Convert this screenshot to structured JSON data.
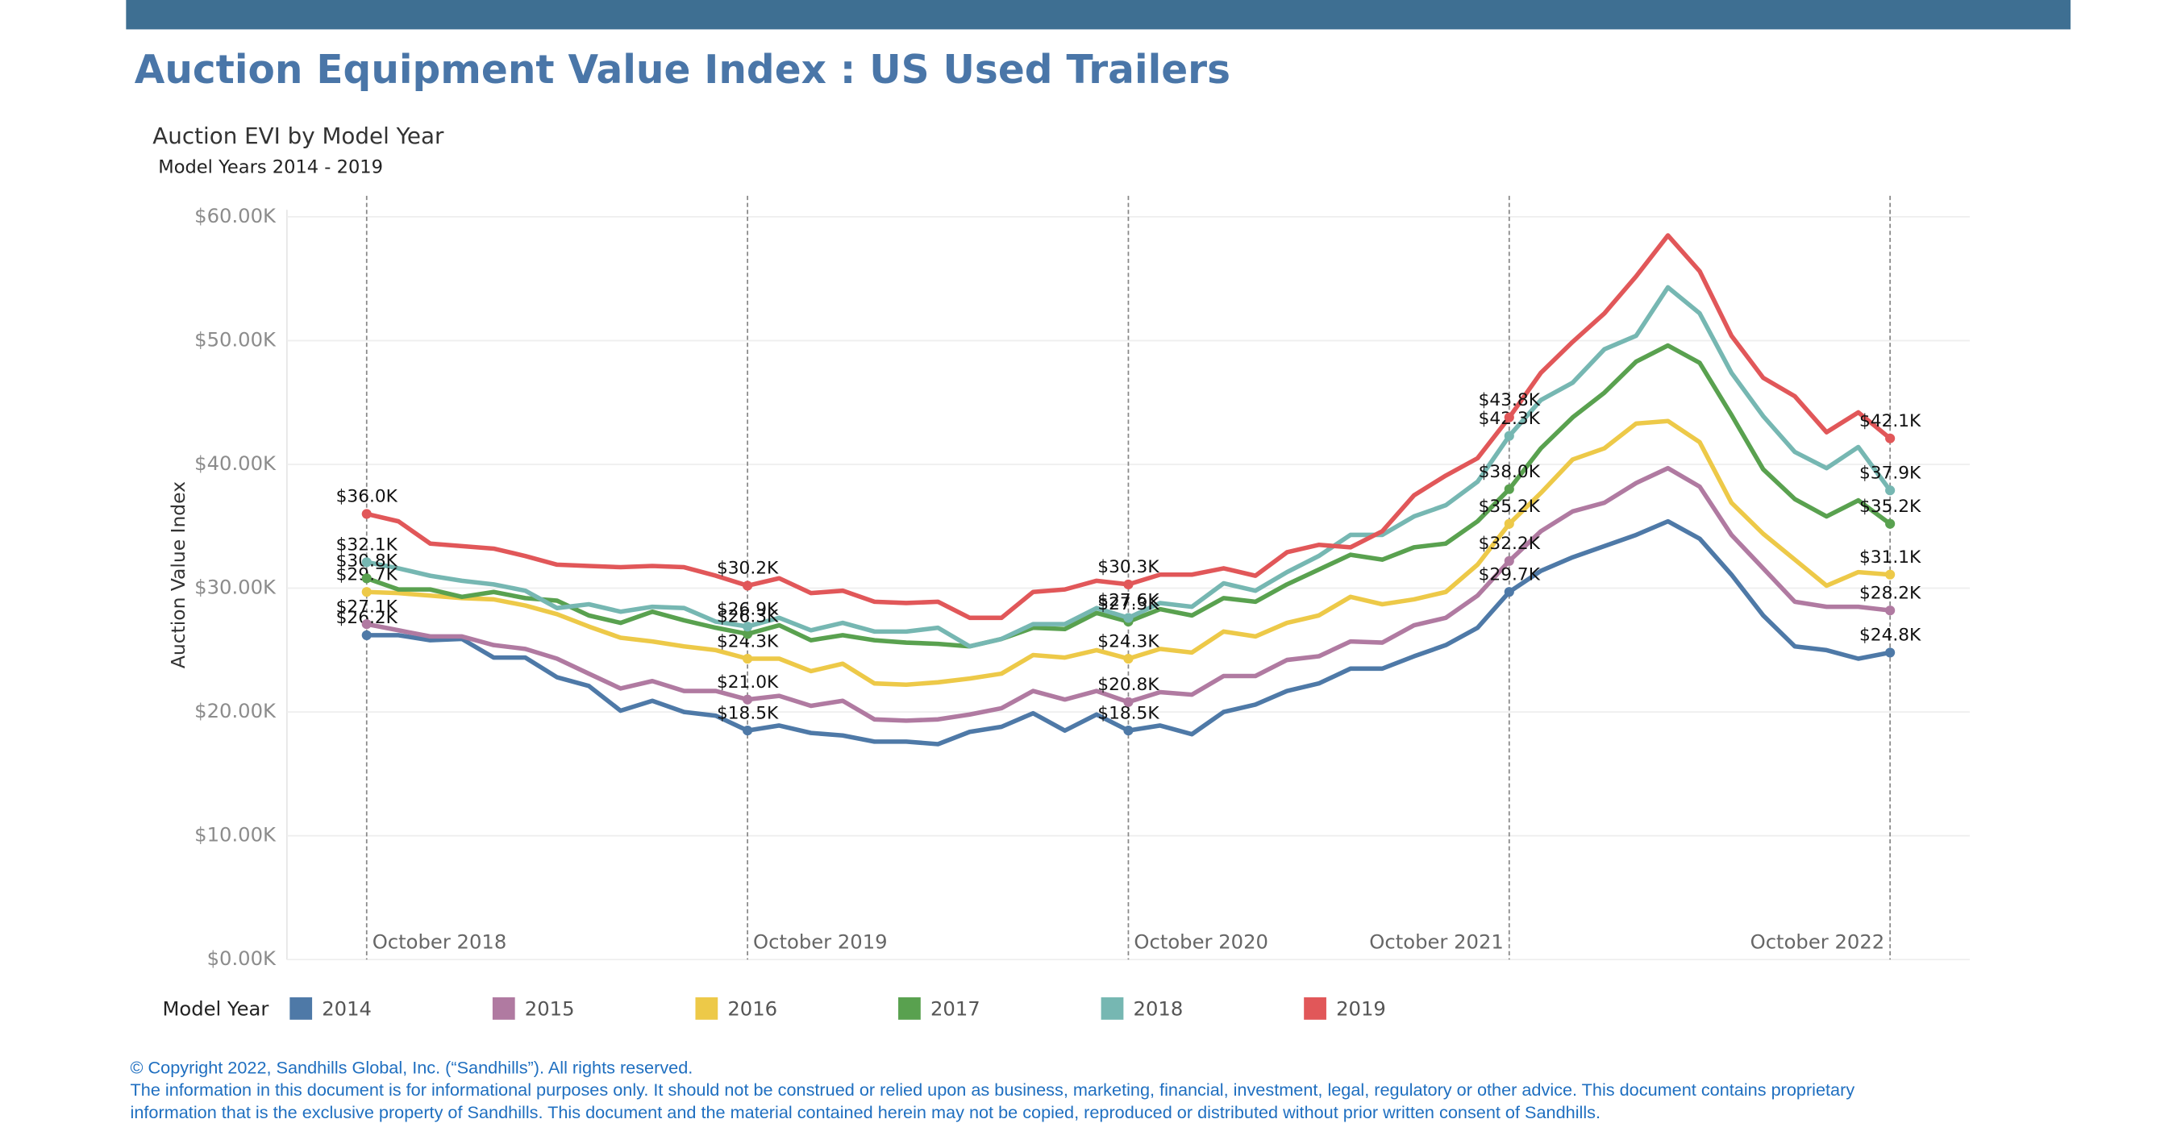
{
  "chart_data": {
    "type": "line",
    "title": "Auction Equipment Value Index : US Used Trailers",
    "subtitle": "Auction EVI by Model Year",
    "caption": "Model Years 2014 - 2019",
    "y_label": "Auction Value Index",
    "legend_title": "Model Year",
    "grid": true,
    "categories": [
      "October 2018",
      null,
      null,
      null,
      null,
      null,
      null,
      null,
      null,
      null,
      null,
      null,
      "October 2019",
      null,
      null,
      null,
      null,
      null,
      null,
      null,
      null,
      null,
      null,
      null,
      "October 2020",
      null,
      null,
      null,
      null,
      null,
      null,
      null,
      null,
      null,
      null,
      null,
      "October 2021",
      null,
      null,
      null,
      null,
      null,
      null,
      null,
      null,
      null,
      null,
      null,
      "October 2022"
    ],
    "ylim": [
      0,
      60
    ],
    "yticks": [
      {
        "value": 0,
        "label": "$0.00K"
      },
      {
        "value": 10,
        "label": "$10.00K"
      },
      {
        "value": 20,
        "label": "$20.00K"
      },
      {
        "value": 30,
        "label": "$30.00K"
      },
      {
        "value": 40,
        "label": "$40.00K"
      },
      {
        "value": 50,
        "label": "$50.00K"
      },
      {
        "value": 60,
        "label": "$60.00K"
      }
    ],
    "series": [
      {
        "name": "2014",
        "color": "#4e79a7",
        "values": [
          26.2,
          26.2,
          25.8,
          25.9,
          24.4,
          24.4,
          22.8,
          22.1,
          20.1,
          20.9,
          20.0,
          19.7,
          18.5,
          18.9,
          18.3,
          18.1,
          17.6,
          17.6,
          17.4,
          18.4,
          18.8,
          19.9,
          18.5,
          19.8,
          18.5,
          18.9,
          18.2,
          20.0,
          20.6,
          21.7,
          22.3,
          23.5,
          23.5,
          24.5,
          25.4,
          26.8,
          29.7,
          31.4,
          32.5,
          33.4,
          34.3,
          35.4,
          34.0,
          31.1,
          27.8,
          25.3,
          25.0,
          24.3,
          24.8
        ],
        "value_labels": [
          "$26.2K",
          null,
          null,
          null,
          null,
          null,
          null,
          null,
          null,
          null,
          null,
          null,
          "$18.5K",
          null,
          null,
          null,
          null,
          null,
          null,
          null,
          null,
          null,
          null,
          null,
          "$18.5K",
          null,
          null,
          null,
          null,
          null,
          null,
          null,
          null,
          null,
          null,
          null,
          "$29.7K",
          null,
          null,
          null,
          null,
          null,
          null,
          null,
          null,
          null,
          null,
          null,
          "$24.8K"
        ]
      },
      {
        "name": "2015",
        "color": "#b07aa1",
        "values": [
          27.1,
          26.6,
          26.1,
          26.1,
          25.4,
          25.1,
          24.3,
          23.1,
          21.9,
          22.5,
          21.7,
          21.7,
          21.0,
          21.3,
          20.5,
          20.9,
          19.4,
          19.3,
          19.4,
          19.8,
          20.3,
          21.7,
          21.0,
          21.7,
          20.8,
          21.6,
          21.4,
          22.9,
          22.9,
          24.2,
          24.5,
          25.7,
          25.6,
          27.0,
          27.6,
          29.4,
          32.2,
          34.6,
          36.2,
          36.9,
          38.5,
          39.7,
          38.2,
          34.3,
          31.6,
          28.9,
          28.5,
          28.5,
          28.2
        ],
        "value_labels": [
          "$27.1K",
          null,
          null,
          null,
          null,
          null,
          null,
          null,
          null,
          null,
          null,
          null,
          "$21.0K",
          null,
          null,
          null,
          null,
          null,
          null,
          null,
          null,
          null,
          null,
          null,
          "$20.8K",
          null,
          null,
          null,
          null,
          null,
          null,
          null,
          null,
          null,
          null,
          null,
          "$32.2K",
          null,
          null,
          null,
          null,
          null,
          null,
          null,
          null,
          null,
          null,
          null,
          "$28.2K"
        ]
      },
      {
        "name": "2016",
        "color": "#edc948",
        "values": [
          29.7,
          29.6,
          29.4,
          29.2,
          29.1,
          28.6,
          27.9,
          26.9,
          26.0,
          25.7,
          25.3,
          25.0,
          24.3,
          24.3,
          23.3,
          23.9,
          22.3,
          22.2,
          22.4,
          22.7,
          23.1,
          24.6,
          24.4,
          25.0,
          24.3,
          25.1,
          24.8,
          26.5,
          26.1,
          27.2,
          27.8,
          29.3,
          28.7,
          29.1,
          29.7,
          31.9,
          35.2,
          37.7,
          40.4,
          41.3,
          43.3,
          43.5,
          41.8,
          36.9,
          34.4,
          32.3,
          30.2,
          31.3,
          31.1
        ],
        "value_labels": [
          "$29.7K",
          null,
          null,
          null,
          null,
          null,
          null,
          null,
          null,
          null,
          null,
          null,
          "$24.3K",
          null,
          null,
          null,
          null,
          null,
          null,
          null,
          null,
          null,
          null,
          null,
          "$24.3K",
          null,
          null,
          null,
          null,
          null,
          null,
          null,
          null,
          null,
          null,
          null,
          "$35.2K",
          null,
          null,
          null,
          null,
          null,
          null,
          null,
          null,
          null,
          null,
          null,
          "$31.1K"
        ]
      },
      {
        "name": "2017",
        "color": "#59a14f",
        "values": [
          30.8,
          29.9,
          29.9,
          29.3,
          29.7,
          29.2,
          29.0,
          27.8,
          27.2,
          28.1,
          27.4,
          26.8,
          26.3,
          27.0,
          25.8,
          26.2,
          25.8,
          25.6,
          25.5,
          25.3,
          25.9,
          26.8,
          26.7,
          28.0,
          27.3,
          28.3,
          27.8,
          29.2,
          28.9,
          30.3,
          31.5,
          32.7,
          32.3,
          33.3,
          33.6,
          35.4,
          38.0,
          41.3,
          43.8,
          45.8,
          48.3,
          49.6,
          48.2,
          44.0,
          39.6,
          37.2,
          35.8,
          37.1,
          35.2
        ],
        "value_labels": [
          "$30.8K",
          null,
          null,
          null,
          null,
          null,
          null,
          null,
          null,
          null,
          null,
          null,
          "$26.3K",
          null,
          null,
          null,
          null,
          null,
          null,
          null,
          null,
          null,
          null,
          null,
          "$27.3K",
          null,
          null,
          null,
          null,
          null,
          null,
          null,
          null,
          null,
          null,
          null,
          "$38.0K",
          null,
          null,
          null,
          null,
          null,
          null,
          null,
          null,
          null,
          null,
          null,
          "$35.2K"
        ]
      },
      {
        "name": "2018",
        "color": "#76b7b2",
        "values": [
          32.1,
          31.6,
          31.0,
          30.6,
          30.3,
          29.8,
          28.4,
          28.7,
          28.1,
          28.5,
          28.4,
          27.3,
          26.9,
          27.6,
          26.6,
          27.2,
          26.5,
          26.5,
          26.8,
          25.3,
          25.9,
          27.1,
          27.1,
          28.4,
          27.6,
          28.8,
          28.5,
          30.4,
          29.8,
          31.3,
          32.6,
          34.3,
          34.3,
          35.8,
          36.7,
          38.6,
          42.3,
          45.2,
          46.6,
          49.3,
          50.4,
          54.3,
          52.2,
          47.4,
          43.9,
          41.0,
          39.7,
          41.4,
          37.9
        ],
        "value_labels": [
          "$32.1K",
          null,
          null,
          null,
          null,
          null,
          null,
          null,
          null,
          null,
          null,
          null,
          "$26.9K",
          null,
          null,
          null,
          null,
          null,
          null,
          null,
          null,
          null,
          null,
          null,
          "$27.6K",
          null,
          null,
          null,
          null,
          null,
          null,
          null,
          null,
          null,
          null,
          null,
          "$42.3K",
          null,
          null,
          null,
          null,
          null,
          null,
          null,
          null,
          null,
          null,
          null,
          "$37.9K"
        ]
      },
      {
        "name": "2019",
        "color": "#e15759",
        "values": [
          36.0,
          35.4,
          33.6,
          33.4,
          33.2,
          32.6,
          31.9,
          31.8,
          31.7,
          31.8,
          31.7,
          31.0,
          30.2,
          30.8,
          29.6,
          29.8,
          28.9,
          28.8,
          28.9,
          27.6,
          27.6,
          29.7,
          29.9,
          30.6,
          30.3,
          31.1,
          31.1,
          31.6,
          31.0,
          32.9,
          33.5,
          33.3,
          34.6,
          37.5,
          39.1,
          40.5,
          43.8,
          47.4,
          49.9,
          52.2,
          55.2,
          58.5,
          55.6,
          50.4,
          47.0,
          45.5,
          42.6,
          44.2,
          42.1
        ],
        "value_labels": [
          "$36.0K",
          null,
          null,
          null,
          null,
          null,
          null,
          null,
          null,
          null,
          null,
          null,
          "$30.2K",
          null,
          null,
          null,
          null,
          null,
          null,
          null,
          null,
          null,
          null,
          null,
          "$30.3K",
          null,
          null,
          null,
          null,
          null,
          null,
          null,
          null,
          null,
          null,
          null,
          "$43.8K",
          null,
          null,
          null,
          null,
          null,
          null,
          null,
          null,
          null,
          null,
          null,
          "$42.1K"
        ]
      }
    ]
  },
  "footer": [
    "© Copyright 2022, Sandhills Global, Inc. (“Sandhills”). All rights reserved.",
    "The information in this document is for informational purposes only.  It should not be construed or relied upon as business, marketing, financial, investment, legal, regulatory or other advice. This document contains proprietary",
    "information that is the exclusive property of Sandhills. This document and the material contained herein may not be copied, reproduced or distributed without prior written consent of Sandhills."
  ]
}
